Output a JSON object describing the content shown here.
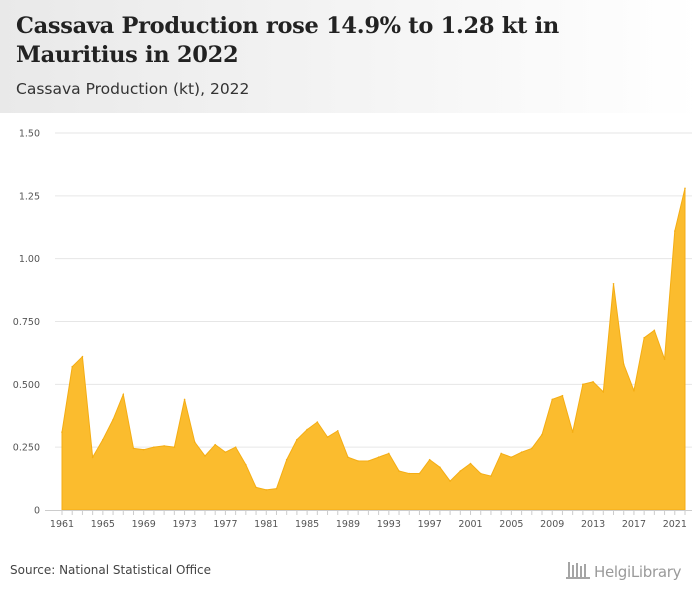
{
  "header": {
    "title": "Cassava Production rose 14.9% to 1.28 kt in Mauritius in 2022",
    "subtitle": "Cassava Production (kt), 2022"
  },
  "footer": {
    "source": "Source: National Statistical Office",
    "logo_text": "HelgiLibrary"
  },
  "colors": {
    "area_fill": "#fbbc2e",
    "area_stroke": "#f4ad14",
    "grid": "#e6e6e6",
    "axis": "#cccccc"
  },
  "chart_data": {
    "type": "area",
    "x": [
      1961,
      1962,
      1963,
      1964,
      1965,
      1966,
      1967,
      1968,
      1969,
      1970,
      1971,
      1972,
      1973,
      1974,
      1975,
      1976,
      1977,
      1978,
      1979,
      1980,
      1981,
      1982,
      1983,
      1984,
      1985,
      1986,
      1987,
      1988,
      1989,
      1990,
      1991,
      1992,
      1993,
      1994,
      1995,
      1996,
      1997,
      1998,
      1999,
      2000,
      2001,
      2002,
      2003,
      2004,
      2005,
      2006,
      2007,
      2008,
      2009,
      2010,
      2011,
      2012,
      2013,
      2014,
      2015,
      2016,
      2017,
      2018,
      2019,
      2020,
      2021,
      2022
    ],
    "series": [
      {
        "values": [
          0.31,
          0.57,
          0.61,
          0.21,
          0.28,
          0.36,
          0.46,
          0.245,
          0.24,
          0.25,
          0.255,
          0.25,
          0.44,
          0.27,
          0.215,
          0.26,
          0.23,
          0.25,
          0.18,
          0.09,
          0.08,
          0.085,
          0.2,
          0.28,
          0.32,
          0.35,
          0.29,
          0.315,
          0.21,
          0.195,
          0.195,
          0.21,
          0.225,
          0.155,
          0.145,
          0.145,
          0.2,
          0.17,
          0.115,
          0.155,
          0.185,
          0.145,
          0.135,
          0.225,
          0.21,
          0.23,
          0.245,
          0.3,
          0.44,
          0.455,
          0.31,
          0.5,
          0.51,
          0.47,
          0.9,
          0.58,
          0.475,
          0.685,
          0.715,
          0.6,
          1.11,
          1.28
        ]
      }
    ],
    "x_tick_labels": [
      "1961",
      "1965",
      "1969",
      "1973",
      "1977",
      "1981",
      "1985",
      "1989",
      "1993",
      "1997",
      "2001",
      "2005",
      "2009",
      "2013",
      "2017",
      "2021"
    ],
    "y_tick_labels": [
      "0",
      "0.250",
      "0.500",
      "0.750",
      "1.00",
      "1.25",
      "1.50"
    ],
    "y_ticks": [
      0,
      0.25,
      0.5,
      0.75,
      1.0,
      1.25,
      1.5
    ],
    "ylim": [
      0,
      1.5
    ],
    "grid": true
  }
}
